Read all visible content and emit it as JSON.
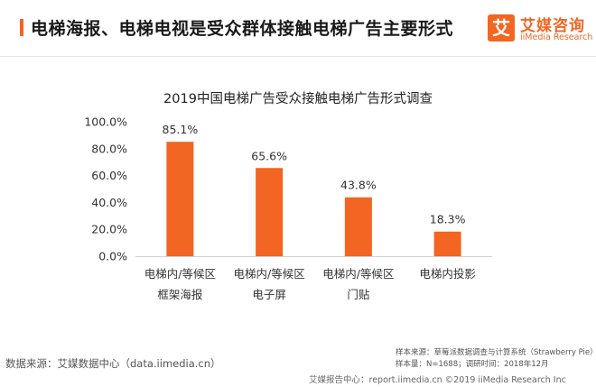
{
  "header": {
    "title": "电梯海报、电梯电视是受众群体接触电梯广告主要形式",
    "brand_mark": "艾",
    "brand_name": "艾媒咨询",
    "brand_en": "iiMedia Research"
  },
  "colors": {
    "accent": "#f26522",
    "bar": "#f26522"
  },
  "chart_data": {
    "type": "bar",
    "title": "2019中国电梯广告受众接触电梯广告形式调查",
    "categories": [
      [
        "电梯内/等候区",
        "框架海报"
      ],
      [
        "电梯内/等候区",
        "电子屏"
      ],
      [
        "电梯内/等候区",
        "门贴"
      ],
      [
        "电梯内投影"
      ]
    ],
    "values": [
      85.1,
      65.6,
      43.8,
      18.3
    ],
    "value_labels": [
      "85.1%",
      "65.6%",
      "43.8%",
      "18.3%"
    ],
    "ylim": [
      0,
      100
    ],
    "yticks": [
      0,
      20,
      40,
      60,
      80,
      100
    ],
    "ytick_labels": [
      "0.0%",
      "20.0%",
      "40.0%",
      "60.0%",
      "80.0%",
      "100.0%"
    ],
    "grid": false
  },
  "footer": {
    "source": "数据来源：艾媒数据中心（data.iimedia.cn）",
    "sample_source": "样本来源：草莓派数据调查与计算系统（Strawberry Pie）",
    "sample_size": "样本量：N=1688；调研时间：2018年12月",
    "bottom": "艾媒报告中心：report.iimedia.cn  ©2019  iiMedia Research  Inc"
  }
}
